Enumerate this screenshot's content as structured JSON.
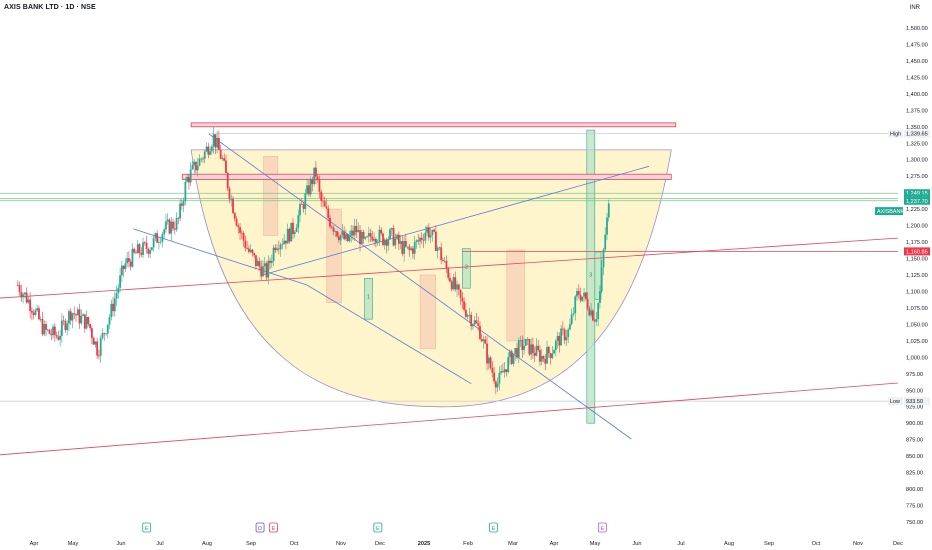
{
  "header": {
    "title": "AXIS BANK LTD · 1D · NSE",
    "currency": "INR"
  },
  "colors": {
    "up": "#22ab94",
    "down": "#f23645",
    "fill_cup": "#fff3c4",
    "trend_blue": "#5b7bd5",
    "trend_red": "#e0455b",
    "resistance_green": "#7cc58d",
    "badge_green": "#22ab94"
  },
  "chart_data": {
    "type": "candlestick",
    "symbol": "AXIS BANK LTD",
    "interval": "1D",
    "exchange": "NSE",
    "y_axis": {
      "ticks": [
        "1,500.00",
        "1,475.00",
        "1,450.00",
        "1,425.00",
        "1,400.00",
        "1,375.00",
        "1,350.00",
        "1,325.00",
        "1,300.00",
        "1,275.00",
        "1,250.00",
        "1,225.00",
        "1,200.00",
        "1,175.00",
        "1,150.00",
        "1,125.00",
        "1,100.00",
        "1,075.00",
        "1,050.00",
        "1,025.00",
        "1,000.00",
        "975.00",
        "950.00",
        "925.00",
        "900.00",
        "875.00",
        "850.00",
        "825.00",
        "800.00",
        "775.00",
        "750.00"
      ],
      "range": [
        750,
        1500
      ]
    },
    "x_axis": {
      "ticks": [
        "Apr",
        "May",
        "Jun",
        "Jul",
        "Aug",
        "Sep",
        "Oct",
        "Nov",
        "Dec",
        "2025",
        "Feb",
        "Mar",
        "Apr",
        "May",
        "Jun",
        "Jul",
        "Aug",
        "Sep",
        "Oct",
        "Nov",
        "Dec"
      ]
    },
    "price_labels": [
      {
        "label": "High",
        "value": "1,339.65",
        "y": 1339.65,
        "style": "plain"
      },
      {
        "label": "",
        "value": "1,249.15",
        "y": 1249.15,
        "style": "green"
      },
      {
        "label": "",
        "value": "1,241.20",
        "y": 1241.2,
        "style": "green"
      },
      {
        "label": "",
        "value": "1,237.70",
        "y": 1237.7,
        "style": "green"
      },
      {
        "label": "AXISBANK",
        "value": "",
        "y": 1222,
        "style": "ticker"
      },
      {
        "label": "",
        "value": "1,160.85",
        "y": 1160.85,
        "style": "red"
      },
      {
        "label": "Low",
        "value": "933.50",
        "y": 933.5,
        "style": "plain"
      }
    ],
    "event_markers": [
      {
        "text": "E",
        "date": 2024.29,
        "color": "#22ab94"
      },
      {
        "text": "D",
        "date": 2024.545,
        "color": "#5b55d6"
      },
      {
        "text": "E",
        "date": 2024.575,
        "color": "#e0455b"
      },
      {
        "text": "E",
        "date": 2024.81,
        "color": "#22ab94"
      },
      {
        "text": "E",
        "date": 2025.07,
        "color": "#22ab94"
      },
      {
        "text": "E",
        "date": 2025.315,
        "color": "#b35bd6"
      }
    ],
    "zones": [
      {
        "x": [
          2024.553,
          2024.585
        ],
        "y": [
          1185,
          1305
        ],
        "kind": "down"
      },
      {
        "x": [
          2024.695,
          2024.728
        ],
        "y": [
          1083,
          1225
        ],
        "kind": "down"
      },
      {
        "x": [
          2024.78,
          2024.798
        ],
        "y": [
          1058,
          1120
        ],
        "kind": "up",
        "label": "1"
      },
      {
        "x": [
          2024.905,
          2024.94
        ],
        "y": [
          1013,
          1125
        ],
        "kind": "down"
      },
      {
        "x": [
          2025.0,
          2025.018
        ],
        "y": [
          1105,
          1165
        ],
        "kind": "up",
        "label": "2"
      },
      {
        "x": [
          2025.1,
          2025.14
        ],
        "y": [
          1025,
          1163
        ],
        "kind": "down"
      },
      {
        "x": [
          2025.28,
          2025.298
        ],
        "y": [
          900,
          1345
        ],
        "kind": "up",
        "label": "3"
      },
      {
        "x": [
          2025.298,
          2025.312
        ],
        "y": [
          1088,
          1160
        ],
        "kind": "up"
      }
    ],
    "h_lines": [
      {
        "y": 1339.65,
        "x": [
          2024.43,
          2025.98
        ],
        "color": "#c8cbd3"
      },
      {
        "y": 933.5,
        "x": [
          2023.96,
          2025.98
        ],
        "color": "#c8cbd3"
      },
      {
        "y": 1249.15,
        "x": [
          2023.96,
          2025.98
        ],
        "color": "#7cc58d"
      },
      {
        "y": 1241.2,
        "x": [
          2023.96,
          2025.98
        ],
        "color": "#7cc58d"
      },
      {
        "y": 1237.7,
        "x": [
          2023.96,
          2025.98
        ],
        "color": "#7cc58d"
      },
      {
        "y": 1160.85,
        "x": [
          2025.0,
          2025.98
        ],
        "color": "#e0455b"
      }
    ],
    "resistance_bands": [
      {
        "y": [
          1350,
          1356
        ],
        "x": [
          2024.39,
          2025.48
        ]
      },
      {
        "y": [
          1270,
          1278
        ],
        "x": [
          2024.37,
          2025.47
        ]
      }
    ],
    "trend_lines": [
      {
        "points": [
          [
            2024.43,
            1339
          ],
          [
            2025.38,
            876
          ]
        ],
        "color": "#5b7bd5"
      },
      {
        "points": [
          [
            2024.26,
            1195
          ],
          [
            2024.65,
            1110
          ],
          [
            2025.02,
            960
          ]
        ],
        "color": "#5b7bd5"
      },
      {
        "points": [
          [
            2024.55,
            1125
          ],
          [
            2025.42,
            1290
          ]
        ],
        "color": "#5b7bd5"
      },
      {
        "points": [
          [
            2023.96,
            1090
          ],
          [
            2025.98,
            1181
          ]
        ],
        "color": "#e0455b"
      },
      {
        "points": [
          [
            2023.96,
            852
          ],
          [
            2025.98,
            961
          ]
        ],
        "color": "#e0455b"
      }
    ],
    "cup_pattern": {
      "top": 1315,
      "bottom": 925,
      "x_left": 2024.39,
      "x_right": 2025.47,
      "x_bottom": 2024.97
    },
    "ohlc_path": [
      [
        2024.0,
        1110
      ],
      [
        2024.03,
        1080
      ],
      [
        2024.06,
        1040
      ],
      [
        2024.09,
        1032
      ],
      [
        2024.12,
        1070
      ],
      [
        2024.16,
        1050
      ],
      [
        2024.18,
        1010
      ],
      [
        2024.21,
        1070
      ],
      [
        2024.24,
        1140
      ],
      [
        2024.27,
        1160
      ],
      [
        2024.3,
        1170
      ],
      [
        2024.33,
        1195
      ],
      [
        2024.36,
        1205
      ],
      [
        2024.38,
        1270
      ],
      [
        2024.4,
        1290
      ],
      [
        2024.42,
        1310
      ],
      [
        2024.44,
        1335
      ],
      [
        2024.46,
        1300
      ],
      [
        2024.48,
        1240
      ],
      [
        2024.5,
        1190
      ],
      [
        2024.52,
        1160
      ],
      [
        2024.54,
        1140
      ],
      [
        2024.56,
        1128
      ],
      [
        2024.58,
        1175
      ],
      [
        2024.6,
        1180
      ],
      [
        2024.62,
        1195
      ],
      [
        2024.64,
        1230
      ],
      [
        2024.66,
        1265
      ],
      [
        2024.67,
        1282
      ],
      [
        2024.68,
        1240
      ],
      [
        2024.7,
        1210
      ],
      [
        2024.72,
        1190
      ],
      [
        2024.74,
        1175
      ],
      [
        2024.76,
        1195
      ],
      [
        2024.78,
        1170
      ],
      [
        2024.8,
        1190
      ],
      [
        2024.82,
        1180
      ],
      [
        2024.84,
        1185
      ],
      [
        2024.86,
        1170
      ],
      [
        2024.88,
        1160
      ],
      [
        2024.9,
        1175
      ],
      [
        2024.92,
        1195
      ],
      [
        2024.94,
        1175
      ],
      [
        2024.96,
        1140
      ],
      [
        2024.98,
        1110
      ],
      [
        2025.0,
        1080
      ],
      [
        2025.02,
        1060
      ],
      [
        2025.04,
        1040
      ],
      [
        2025.06,
        990
      ],
      [
        2025.08,
        960
      ],
      [
        2025.1,
        990
      ],
      [
        2025.12,
        1010
      ],
      [
        2025.14,
        1020
      ],
      [
        2025.16,
        1010
      ],
      [
        2025.18,
        1000
      ],
      [
        2025.2,
        1010
      ],
      [
        2025.22,
        1030
      ],
      [
        2025.24,
        1040
      ],
      [
        2025.26,
        1100
      ],
      [
        2025.28,
        1085
      ],
      [
        2025.29,
        1070
      ],
      [
        2025.3,
        1060
      ],
      [
        2025.31,
        1100
      ],
      [
        2025.32,
        1180
      ],
      [
        2025.33,
        1230
      ]
    ]
  }
}
